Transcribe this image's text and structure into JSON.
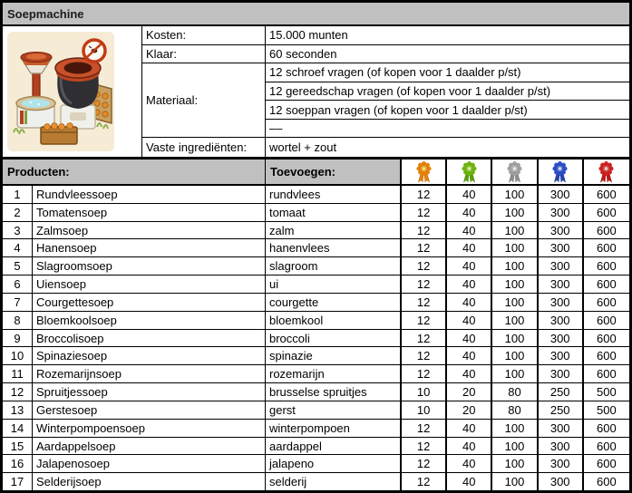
{
  "title": "Soepmachine",
  "colors": {
    "header_bg": "#c0c0c0",
    "border": "#000000",
    "cell_bg": "#ffffff",
    "image_bg": "#f6ecd6"
  },
  "info": {
    "kosten_label": "Kosten:",
    "kosten_value": "15.000 munten",
    "klaar_label": "Klaar:",
    "klaar_value": "60 seconden",
    "materiaal_label": "Materiaal:",
    "materiaal_values": [
      "12 schroef vragen (of kopen voor 1 daalder p/st)",
      "12 gereedschap vragen (of kopen voor 1 daalder p/st)",
      "12 soeppan vragen (of kopen voor 1 daalder p/st)",
      "––"
    ],
    "vaste_label": "Vaste ingrediënten:",
    "vaste_value": "wortel + zout"
  },
  "products_header": {
    "producten": "Producten:",
    "toevoegen": "Toevoegen:",
    "medals": [
      {
        "name": "gold-rosette",
        "body": "#e8820c",
        "dark": "#a34d00",
        "inner": "#f2a21e",
        "center": "#ffe97a",
        "ribbon": "#e8820c"
      },
      {
        "name": "green-rosette",
        "body": "#6fb50e",
        "dark": "#3f7a00",
        "inner": "#8cc92e",
        "center": "#dff09a",
        "ribbon": "#5a9e0a"
      },
      {
        "name": "silver-rosette",
        "body": "#a2a2a2",
        "dark": "#606060",
        "inner": "#bdbdbd",
        "center": "#ededed",
        "ribbon": "#8e8e8e"
      },
      {
        "name": "blue-rosette",
        "body": "#2a4fd0",
        "dark": "#14277a",
        "inner": "#3f63d8",
        "center": "#cfdcf8",
        "ribbon": "#2343b0"
      },
      {
        "name": "red-rosette",
        "body": "#d42020",
        "dark": "#7e0c0c",
        "inner": "#df3c3c",
        "center": "#f8caca",
        "ribbon": "#c01818"
      }
    ]
  },
  "products": [
    {
      "num": "1",
      "name": "Rundvleessoep",
      "add": "rundvlees",
      "values": [
        "12",
        "40",
        "100",
        "300",
        "600"
      ]
    },
    {
      "num": "2",
      "name": "Tomatensoep",
      "add": "tomaat",
      "values": [
        "12",
        "40",
        "100",
        "300",
        "600"
      ]
    },
    {
      "num": "3",
      "name": "Zalmsoep",
      "add": "zalm",
      "values": [
        "12",
        "40",
        "100",
        "300",
        "600"
      ]
    },
    {
      "num": "4",
      "name": "Hanensoep",
      "add": "hanenvlees",
      "values": [
        "12",
        "40",
        "100",
        "300",
        "600"
      ]
    },
    {
      "num": "5",
      "name": "Slagroomsoep",
      "add": "slagroom",
      "values": [
        "12",
        "40",
        "100",
        "300",
        "600"
      ]
    },
    {
      "num": "6",
      "name": "Uiensoep",
      "add": "ui",
      "values": [
        "12",
        "40",
        "100",
        "300",
        "600"
      ]
    },
    {
      "num": "7",
      "name": "Courgettesoep",
      "add": "courgette",
      "values": [
        "12",
        "40",
        "100",
        "300",
        "600"
      ]
    },
    {
      "num": "8",
      "name": "Bloemkoolsoep",
      "add": "bloemkool",
      "values": [
        "12",
        "40",
        "100",
        "300",
        "600"
      ]
    },
    {
      "num": "9",
      "name": "Broccolisoep",
      "add": "broccoli",
      "values": [
        "12",
        "40",
        "100",
        "300",
        "600"
      ]
    },
    {
      "num": "10",
      "name": "Spinaziesoep",
      "add": "spinazie",
      "values": [
        "12",
        "40",
        "100",
        "300",
        "600"
      ]
    },
    {
      "num": "11",
      "name": "Rozemarijnsoep",
      "add": "rozemarijn",
      "values": [
        "12",
        "40",
        "100",
        "300",
        "600"
      ]
    },
    {
      "num": "12",
      "name": "Spruitjessoep",
      "add": "brusselse spruitjes",
      "values": [
        "10",
        "20",
        "80",
        "250",
        "500"
      ]
    },
    {
      "num": "13",
      "name": "Gerstesoep",
      "add": "gerst",
      "values": [
        "10",
        "20",
        "80",
        "250",
        "500"
      ]
    },
    {
      "num": "14",
      "name": "Winterpompoensoep",
      "add": "winterpompoen",
      "values": [
        "12",
        "40",
        "100",
        "300",
        "600"
      ]
    },
    {
      "num": "15",
      "name": "Aardappelsoep",
      "add": "aardappel",
      "values": [
        "12",
        "40",
        "100",
        "300",
        "600"
      ]
    },
    {
      "num": "16",
      "name": "Jalapenosoep",
      "add": "jalapeno",
      "values": [
        "12",
        "40",
        "100",
        "300",
        "600"
      ]
    },
    {
      "num": "17",
      "name": "Selderijsoep",
      "add": "selderij",
      "values": [
        "12",
        "40",
        "100",
        "300",
        "600"
      ]
    }
  ]
}
